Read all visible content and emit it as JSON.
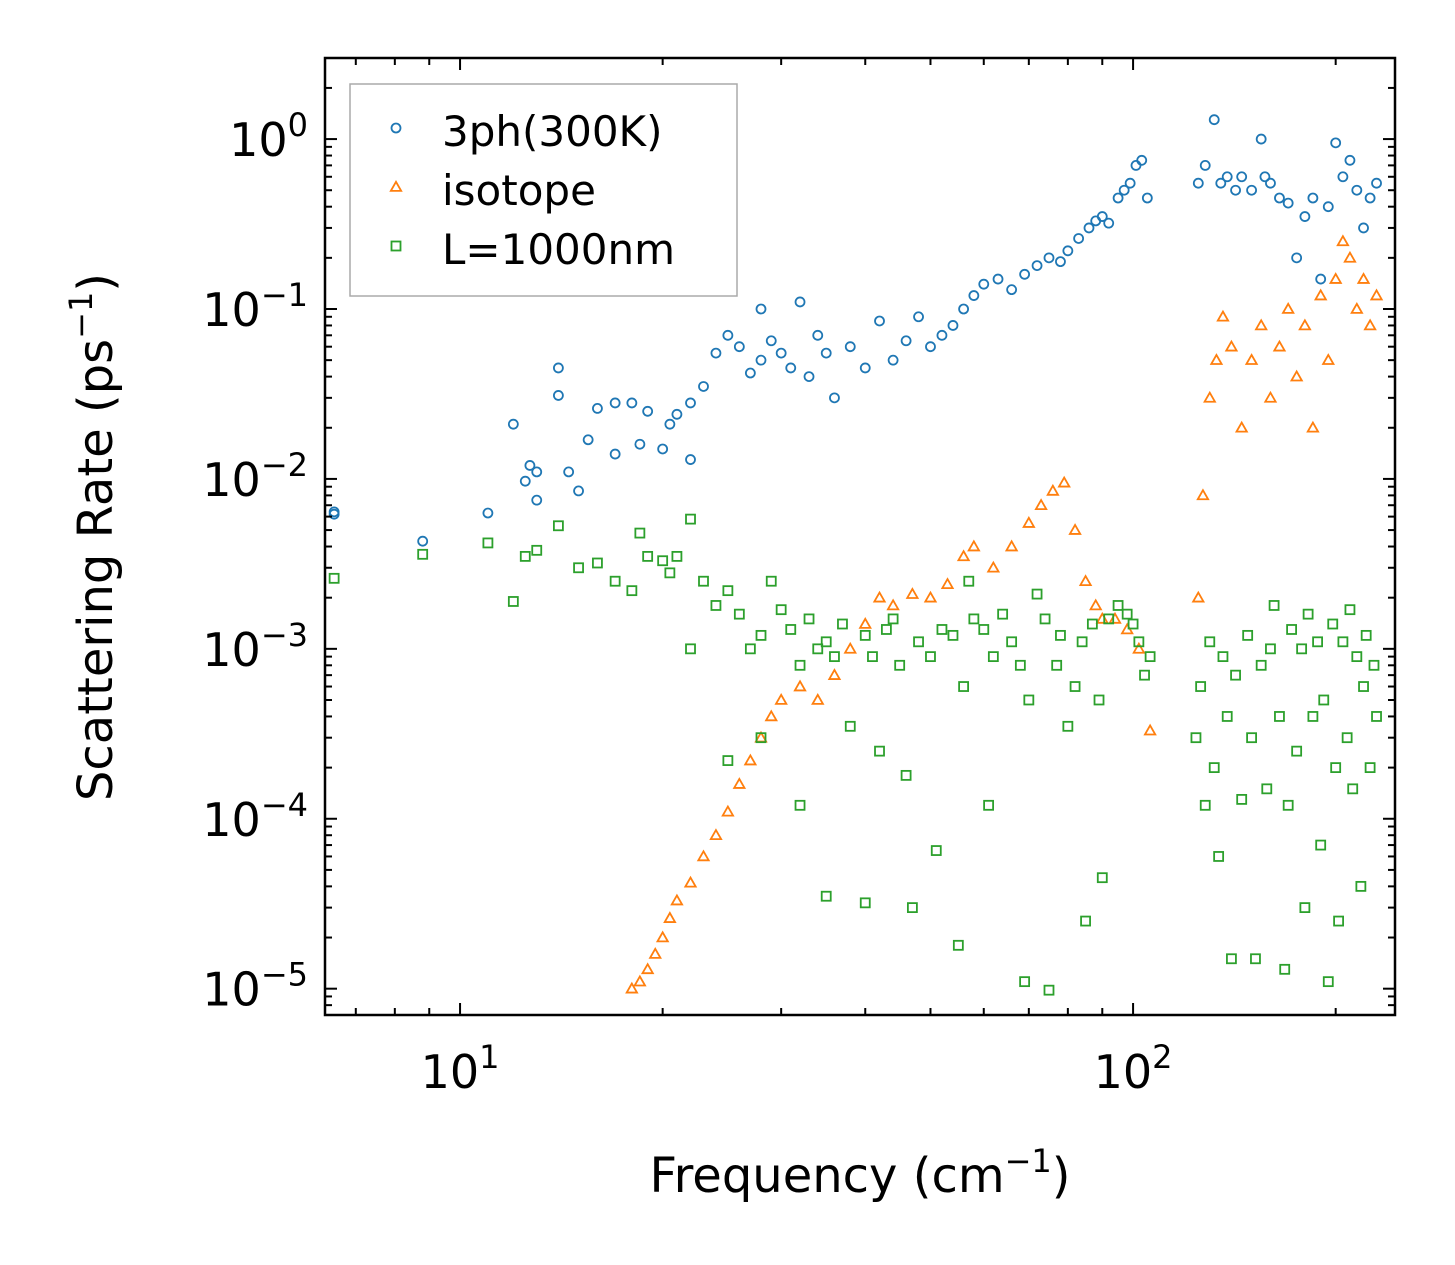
{
  "chart_data": {
    "type": "scatter",
    "title": "",
    "xlabel": {
      "main": "Frequency (cm",
      "sup": "−1",
      "tail": ")"
    },
    "ylabel": {
      "main": "Scattering Rate (ps",
      "sup": "−1",
      "tail": ")"
    },
    "xscale": "log",
    "yscale": "log",
    "xlim": [
      6.3,
      245
    ],
    "ylim": [
      7e-06,
      3.0
    ],
    "x_major_ticks": [
      {
        "value": 10,
        "base": "10",
        "exp": "1"
      },
      {
        "value": 100,
        "base": "10",
        "exp": "2"
      }
    ],
    "y_major_ticks": [
      {
        "value": 1,
        "base": "10",
        "exp": "0"
      },
      {
        "value": 0.1,
        "base": "10",
        "exp": "−1"
      },
      {
        "value": 0.01,
        "base": "10",
        "exp": "−2"
      },
      {
        "value": 0.001,
        "base": "10",
        "exp": "−3"
      },
      {
        "value": 0.0001,
        "base": "10",
        "exp": "−4"
      },
      {
        "value": 1e-05,
        "base": "10",
        "exp": "−5"
      }
    ],
    "legend_position": "top-left",
    "grid": false,
    "series": [
      {
        "name": "3ph(300K)",
        "marker": "circle",
        "color": "#1f77b4",
        "points": [
          [
            6.5,
            0.0062
          ],
          [
            6.5,
            0.0064
          ],
          [
            8.8,
            0.0043
          ],
          [
            11,
            0.0063
          ],
          [
            12,
            0.021
          ],
          [
            12.5,
            0.0097
          ],
          [
            12.7,
            0.012
          ],
          [
            13,
            0.0075
          ],
          [
            13,
            0.011
          ],
          [
            14,
            0.045
          ],
          [
            14,
            0.031
          ],
          [
            14.5,
            0.011
          ],
          [
            15,
            0.0085
          ],
          [
            15.5,
            0.017
          ],
          [
            16,
            0.026
          ],
          [
            17,
            0.028
          ],
          [
            17,
            0.014
          ],
          [
            18,
            0.028
          ],
          [
            18.5,
            0.016
          ],
          [
            19,
            0.025
          ],
          [
            20,
            0.015
          ],
          [
            20.5,
            0.021
          ],
          [
            21,
            0.024
          ],
          [
            22,
            0.028
          ],
          [
            22,
            0.013
          ],
          [
            23,
            0.035
          ],
          [
            24,
            0.055
          ],
          [
            25,
            0.07
          ],
          [
            26,
            0.06
          ],
          [
            27,
            0.042
          ],
          [
            28,
            0.05
          ],
          [
            28,
            0.1
          ],
          [
            29,
            0.065
          ],
          [
            30,
            0.055
          ],
          [
            31,
            0.045
          ],
          [
            32,
            0.11
          ],
          [
            33,
            0.04
          ],
          [
            34,
            0.07
          ],
          [
            35,
            0.055
          ],
          [
            36,
            0.03
          ],
          [
            38,
            0.06
          ],
          [
            40,
            0.045
          ],
          [
            42,
            0.085
          ],
          [
            44,
            0.05
          ],
          [
            46,
            0.065
          ],
          [
            48,
            0.09
          ],
          [
            50,
            0.06
          ],
          [
            52,
            0.07
          ],
          [
            54,
            0.08
          ],
          [
            56,
            0.1
          ],
          [
            58,
            0.12
          ],
          [
            60,
            0.14
          ],
          [
            63,
            0.15
          ],
          [
            66,
            0.13
          ],
          [
            69,
            0.16
          ],
          [
            72,
            0.18
          ],
          [
            75,
            0.2
          ],
          [
            78,
            0.19
          ],
          [
            80,
            0.22
          ],
          [
            83,
            0.26
          ],
          [
            86,
            0.3
          ],
          [
            88,
            0.33
          ],
          [
            90,
            0.35
          ],
          [
            92,
            0.32
          ],
          [
            95,
            0.45
          ],
          [
            97,
            0.5
          ],
          [
            99,
            0.55
          ],
          [
            101,
            0.7
          ],
          [
            103,
            0.75
          ],
          [
            105,
            0.45
          ],
          [
            125,
            0.55
          ],
          [
            128,
            0.7
          ],
          [
            132,
            1.3
          ],
          [
            135,
            0.55
          ],
          [
            138,
            0.6
          ],
          [
            142,
            0.5
          ],
          [
            145,
            0.6
          ],
          [
            150,
            0.5
          ],
          [
            155,
            1.0
          ],
          [
            157,
            0.6
          ],
          [
            160,
            0.55
          ],
          [
            165,
            0.45
          ],
          [
            170,
            0.42
          ],
          [
            175,
            0.2
          ],
          [
            180,
            0.35
          ],
          [
            185,
            0.45
          ],
          [
            190,
            0.15
          ],
          [
            195,
            0.4
          ],
          [
            200,
            0.95
          ],
          [
            205,
            0.6
          ],
          [
            210,
            0.75
          ],
          [
            215,
            0.5
          ],
          [
            220,
            0.3
          ],
          [
            225,
            0.45
          ],
          [
            230,
            0.55
          ]
        ]
      },
      {
        "name": "isotope",
        "marker": "triangle",
        "color": "#ff7f0e",
        "points": [
          [
            18,
            1e-05
          ],
          [
            18.5,
            1.1e-05
          ],
          [
            19,
            1.3e-05
          ],
          [
            19.5,
            1.6e-05
          ],
          [
            20,
            2e-05
          ],
          [
            20.5,
            2.6e-05
          ],
          [
            21,
            3.3e-05
          ],
          [
            22,
            4.2e-05
          ],
          [
            23,
            6e-05
          ],
          [
            24,
            8e-05
          ],
          [
            25,
            0.00011
          ],
          [
            26,
            0.00016
          ],
          [
            27,
            0.00022
          ],
          [
            28,
            0.0003
          ],
          [
            29,
            0.0004
          ],
          [
            30,
            0.0005
          ],
          [
            32,
            0.0006
          ],
          [
            34,
            0.0005
          ],
          [
            36,
            0.0007
          ],
          [
            38,
            0.001
          ],
          [
            40,
            0.0014
          ],
          [
            42,
            0.002
          ],
          [
            44,
            0.0018
          ],
          [
            47,
            0.0021
          ],
          [
            50,
            0.002
          ],
          [
            53,
            0.0024
          ],
          [
            56,
            0.0035
          ],
          [
            58,
            0.004
          ],
          [
            62,
            0.003
          ],
          [
            66,
            0.004
          ],
          [
            70,
            0.0055
          ],
          [
            73,
            0.007
          ],
          [
            76,
            0.0085
          ],
          [
            79,
            0.0095
          ],
          [
            82,
            0.005
          ],
          [
            85,
            0.0025
          ],
          [
            88,
            0.0018
          ],
          [
            90,
            0.0015
          ],
          [
            94,
            0.0015
          ],
          [
            98,
            0.0013
          ],
          [
            102,
            0.001
          ],
          [
            106,
            0.00033
          ],
          [
            125,
            0.002
          ],
          [
            127,
            0.008
          ],
          [
            130,
            0.03
          ],
          [
            133,
            0.05
          ],
          [
            136,
            0.09
          ],
          [
            140,
            0.06
          ],
          [
            145,
            0.02
          ],
          [
            150,
            0.05
          ],
          [
            155,
            0.08
          ],
          [
            160,
            0.03
          ],
          [
            165,
            0.06
          ],
          [
            170,
            0.1
          ],
          [
            175,
            0.04
          ],
          [
            180,
            0.08
          ],
          [
            185,
            0.02
          ],
          [
            190,
            0.12
          ],
          [
            195,
            0.05
          ],
          [
            200,
            0.15
          ],
          [
            205,
            0.25
          ],
          [
            210,
            0.2
          ],
          [
            215,
            0.1
          ],
          [
            220,
            0.15
          ],
          [
            225,
            0.08
          ],
          [
            230,
            0.12
          ]
        ]
      },
      {
        "name": "L=1000nm",
        "marker": "square",
        "color": "#2ca02c",
        "points": [
          [
            6.5,
            0.0026
          ],
          [
            8.8,
            0.0036
          ],
          [
            11,
            0.0042
          ],
          [
            12,
            0.0019
          ],
          [
            12.5,
            0.0035
          ],
          [
            13,
            0.0038
          ],
          [
            14,
            0.0053
          ],
          [
            15,
            0.003
          ],
          [
            16,
            0.0032
          ],
          [
            17,
            0.0025
          ],
          [
            18,
            0.0022
          ],
          [
            18.5,
            0.0048
          ],
          [
            19,
            0.0035
          ],
          [
            20,
            0.0033
          ],
          [
            20.5,
            0.0028
          ],
          [
            21,
            0.0035
          ],
          [
            22,
            0.0058
          ],
          [
            22,
            0.001
          ],
          [
            23,
            0.0025
          ],
          [
            24,
            0.0018
          ],
          [
            25,
            0.0022
          ],
          [
            25,
            0.00022
          ],
          [
            26,
            0.0016
          ],
          [
            27,
            0.001
          ],
          [
            28,
            0.0012
          ],
          [
            28,
            0.0003
          ],
          [
            29,
            0.0025
          ],
          [
            30,
            0.0017
          ],
          [
            31,
            0.0013
          ],
          [
            32,
            0.0008
          ],
          [
            32,
            0.00012
          ],
          [
            33,
            0.0015
          ],
          [
            34,
            0.001
          ],
          [
            35,
            0.0011
          ],
          [
            35,
            3.5e-05
          ],
          [
            36,
            0.0009
          ],
          [
            37,
            0.0014
          ],
          [
            38,
            0.00035
          ],
          [
            40,
            0.0012
          ],
          [
            40,
            3.2e-05
          ],
          [
            41,
            0.0009
          ],
          [
            42,
            0.00025
          ],
          [
            43,
            0.0013
          ],
          [
            44,
            0.0015
          ],
          [
            45,
            0.0008
          ],
          [
            46,
            0.00018
          ],
          [
            47,
            3e-05
          ],
          [
            48,
            0.0011
          ],
          [
            50,
            0.0009
          ],
          [
            51,
            6.5e-05
          ],
          [
            52,
            0.0013
          ],
          [
            54,
            0.0012
          ],
          [
            55,
            1.8e-05
          ],
          [
            56,
            0.0006
          ],
          [
            57,
            0.0025
          ],
          [
            58,
            0.0015
          ],
          [
            60,
            0.0013
          ],
          [
            61,
            0.00012
          ],
          [
            62,
            0.0009
          ],
          [
            64,
            0.0016
          ],
          [
            66,
            0.0011
          ],
          [
            68,
            0.0008
          ],
          [
            69,
            1.1e-05
          ],
          [
            70,
            0.0005
          ],
          [
            72,
            0.0021
          ],
          [
            74,
            0.0015
          ],
          [
            75,
            9.8e-06
          ],
          [
            77,
            0.0008
          ],
          [
            78,
            0.0012
          ],
          [
            80,
            0.00035
          ],
          [
            82,
            0.0006
          ],
          [
            84,
            0.0011
          ],
          [
            85,
            2.5e-05
          ],
          [
            87,
            0.0014
          ],
          [
            89,
            0.0005
          ],
          [
            90,
            4.5e-05
          ],
          [
            92,
            0.0015
          ],
          [
            95,
            0.0018
          ],
          [
            98,
            0.0016
          ],
          [
            100,
            0.0014
          ],
          [
            102,
            0.0011
          ],
          [
            104,
            0.0007
          ],
          [
            106,
            0.0009
          ],
          [
            124,
            0.0003
          ],
          [
            126,
            0.0006
          ],
          [
            128,
            0.00012
          ],
          [
            130,
            0.0011
          ],
          [
            132,
            0.0002
          ],
          [
            134,
            6e-05
          ],
          [
            136,
            0.0009
          ],
          [
            138,
            0.0004
          ],
          [
            140,
            1.5e-05
          ],
          [
            142,
            0.0007
          ],
          [
            145,
            0.00013
          ],
          [
            148,
            0.0012
          ],
          [
            150,
            0.0003
          ],
          [
            152,
            1.5e-05
          ],
          [
            155,
            0.0008
          ],
          [
            158,
            0.00015
          ],
          [
            160,
            0.001
          ],
          [
            162,
            0.0018
          ],
          [
            165,
            0.0004
          ],
          [
            168,
            1.3e-05
          ],
          [
            170,
            0.00012
          ],
          [
            172,
            0.0013
          ],
          [
            175,
            0.00025
          ],
          [
            178,
            0.001
          ],
          [
            180,
            3e-05
          ],
          [
            182,
            0.0016
          ],
          [
            185,
            0.0004
          ],
          [
            188,
            0.0011
          ],
          [
            190,
            7e-05
          ],
          [
            192,
            0.0005
          ],
          [
            195,
            1.1e-05
          ],
          [
            198,
            0.0014
          ],
          [
            200,
            0.0002
          ],
          [
            202,
            2.5e-05
          ],
          [
            205,
            0.0011
          ],
          [
            208,
            0.0003
          ],
          [
            210,
            0.0017
          ],
          [
            212,
            0.00015
          ],
          [
            215,
            0.0009
          ],
          [
            218,
            4e-05
          ],
          [
            220,
            0.0006
          ],
          [
            222,
            0.0012
          ],
          [
            225,
            0.0002
          ],
          [
            228,
            0.0008
          ],
          [
            230,
            0.0004
          ]
        ]
      }
    ]
  }
}
